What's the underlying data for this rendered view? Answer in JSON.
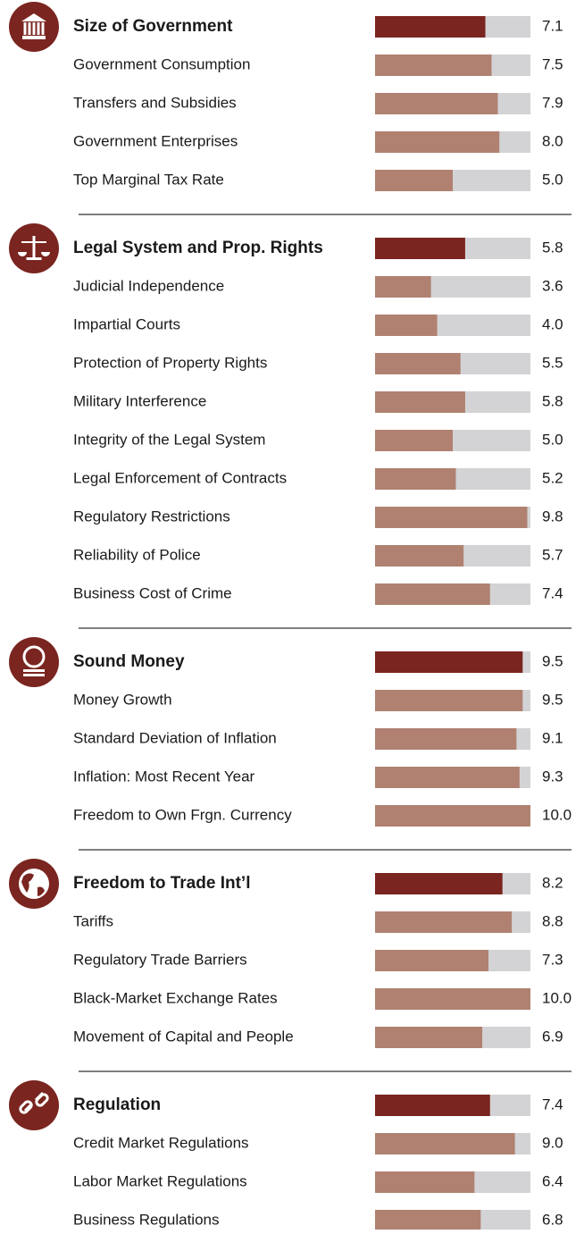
{
  "chart_data": [
    {
      "type": "bar",
      "orientation": "horizontal",
      "title": "Size of Government",
      "total": 7.1,
      "total_label": "7.1",
      "categories": [
        "Government Consumption",
        "Transfers and Subsidies",
        "Government Enterprises",
        "Top Marginal Tax Rate"
      ],
      "values": [
        7.5,
        7.9,
        8.0,
        5.0
      ],
      "value_labels": [
        "7.5",
        "7.9",
        "8.0",
        "5.0"
      ],
      "xlim": [
        0,
        10
      ],
      "total_color": "#7a2520",
      "color": "#b08171",
      "track_color": "#d3d3d5"
    },
    {
      "type": "bar",
      "orientation": "horizontal",
      "title": "Legal System and Prop. Rights",
      "total": 5.8,
      "total_label": "5.8",
      "categories": [
        "Judicial Independence",
        "Impartial Courts",
        "Protection of Property Rights",
        "Military Interference",
        "Integrity of the Legal System",
        "Legal Enforcement of Contracts",
        "Regulatory Restrictions",
        "Reliability of Police",
        "Business Cost of Crime"
      ],
      "values": [
        3.6,
        4.0,
        5.5,
        5.8,
        5.0,
        5.2,
        9.8,
        5.7,
        7.4
      ],
      "value_labels": [
        "3.6",
        "4.0",
        "5.5",
        "5.8",
        "5.0",
        "5.2",
        "9.8",
        "5.7",
        "7.4"
      ],
      "xlim": [
        0,
        10
      ],
      "total_color": "#7a2520",
      "color": "#b08171",
      "track_color": "#d3d3d5"
    },
    {
      "type": "bar",
      "orientation": "horizontal",
      "title": "Sound Money",
      "total": 9.5,
      "total_label": "9.5",
      "categories": [
        "Money Growth",
        "Standard Deviation of Inflation",
        "Inflation: Most Recent Year",
        "Freedom to Own Frgn. Currency"
      ],
      "values": [
        9.5,
        9.1,
        9.3,
        10.0
      ],
      "value_labels": [
        "9.5",
        "9.1",
        "9.3",
        "10.0"
      ],
      "xlim": [
        0,
        10
      ],
      "total_color": "#7a2520",
      "color": "#b08171",
      "track_color": "#d3d3d5"
    },
    {
      "type": "bar",
      "orientation": "horizontal",
      "title": "Freedom to Trade Int’l",
      "total": 8.2,
      "total_label": "8.2",
      "categories": [
        "Tariffs",
        "Regulatory Trade Barriers",
        "Black-Market Exchange Rates",
        "Movement of Capital and People"
      ],
      "values": [
        8.8,
        7.3,
        10.0,
        6.9
      ],
      "value_labels": [
        "8.8",
        "7.3",
        "10.0",
        "6.9"
      ],
      "xlim": [
        0,
        10
      ],
      "total_color": "#7a2520",
      "color": "#b08171",
      "track_color": "#d3d3d5"
    },
    {
      "type": "bar",
      "orientation": "horizontal",
      "title": "Regulation",
      "total": 7.4,
      "total_label": "7.4",
      "categories": [
        "Credit Market Regulations",
        "Labor Market Regulations",
        "Business Regulations"
      ],
      "values": [
        9.0,
        6.4,
        6.8
      ],
      "value_labels": [
        "9.0",
        "6.4",
        "6.8"
      ],
      "xlim": [
        0,
        10
      ],
      "total_color": "#7a2520",
      "color": "#b08171",
      "track_color": "#d3d3d5"
    }
  ]
}
